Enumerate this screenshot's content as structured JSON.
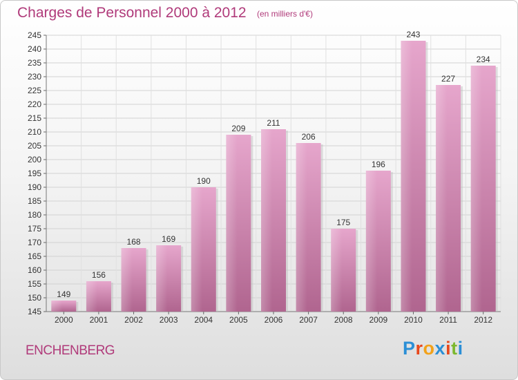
{
  "header": {
    "title": "Charges de Personnel 2000 à 2012",
    "subtitle": "(en milliers d'€)"
  },
  "footer": {
    "city": "ENCHENBERG",
    "brand_letters": [
      "P",
      "r",
      "o",
      "x",
      "i",
      "t",
      "i"
    ],
    "brand_colors": [
      "#2b8fd6",
      "#e8481c",
      "#f2a21a",
      "#2b8fd6",
      "#e8481c",
      "#7cb82f",
      "#2b8fd6"
    ]
  },
  "chart_data": {
    "type": "bar",
    "title": "Charges de Personnel 2000 à 2012",
    "subtitle": "(en milliers d'€)",
    "categories": [
      "2000",
      "2001",
      "2002",
      "2003",
      "2004",
      "2005",
      "2006",
      "2007",
      "2008",
      "2009",
      "2010",
      "2011",
      "2012"
    ],
    "values": [
      149,
      156,
      168,
      169,
      190,
      209,
      211,
      206,
      175,
      196,
      243,
      227,
      234
    ],
    "ylim": [
      145,
      245
    ],
    "yticks": [
      145,
      150,
      155,
      160,
      165,
      170,
      175,
      180,
      185,
      190,
      195,
      200,
      205,
      210,
      215,
      220,
      225,
      230,
      235,
      240,
      245
    ],
    "grid": true,
    "bar_color": "#d986b6",
    "data_labels": true
  }
}
